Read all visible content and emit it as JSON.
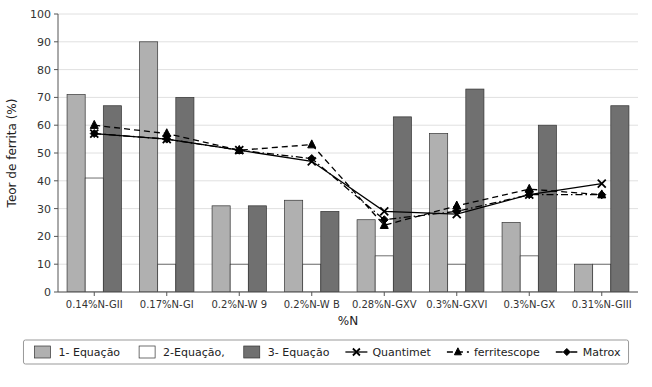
{
  "chart_data": {
    "type": "bar",
    "xlabel": "%N",
    "ylabel": "Teor de ferrita (%)",
    "categories": [
      "0.14%N-GII",
      "0.17%N-GI",
      "0.2%N-W 9",
      "0.2%N-W B",
      "0.28%N-GXV",
      "0.3%N-GXVI",
      "0.3%N-GX",
      "0.31%N-GIII"
    ],
    "series": [
      {
        "name": "1- Equação",
        "type": "bar",
        "color": "#b0b0b0",
        "values": [
          71,
          90,
          31,
          33,
          26,
          57,
          25,
          10
        ]
      },
      {
        "name": "2-Equação,",
        "type": "bar",
        "color": "#ffffff",
        "values": [
          41,
          10,
          10,
          10,
          13,
          10,
          13,
          10
        ]
      },
      {
        "name": "3- Equação",
        "type": "bar",
        "color": "#707070",
        "values": [
          67,
          70,
          31,
          29,
          63,
          73,
          60,
          67
        ]
      },
      {
        "name": "Quantimet",
        "type": "line",
        "color": "#000000",
        "marker": "x",
        "line_style": "solid",
        "values": [
          57,
          55,
          51,
          47,
          29,
          28,
          35,
          39
        ]
      },
      {
        "name": "ferritescope",
        "type": "line",
        "color": "#000000",
        "marker": "triangle",
        "line_style": "dashed",
        "values": [
          60,
          57,
          51,
          53,
          24,
          31,
          37,
          35
        ]
      },
      {
        "name": "Matrox",
        "type": "line",
        "color": "#000000",
        "marker": "diamond",
        "line_style": "dashdot",
        "values": [
          57,
          55,
          51,
          48,
          26,
          29,
          35,
          35
        ]
      }
    ],
    "ylim": [
      0,
      100
    ],
    "yticks": [
      0,
      10,
      20,
      30,
      40,
      50,
      60,
      70,
      80,
      90,
      100
    ],
    "grid": true,
    "legend": "bottom"
  }
}
